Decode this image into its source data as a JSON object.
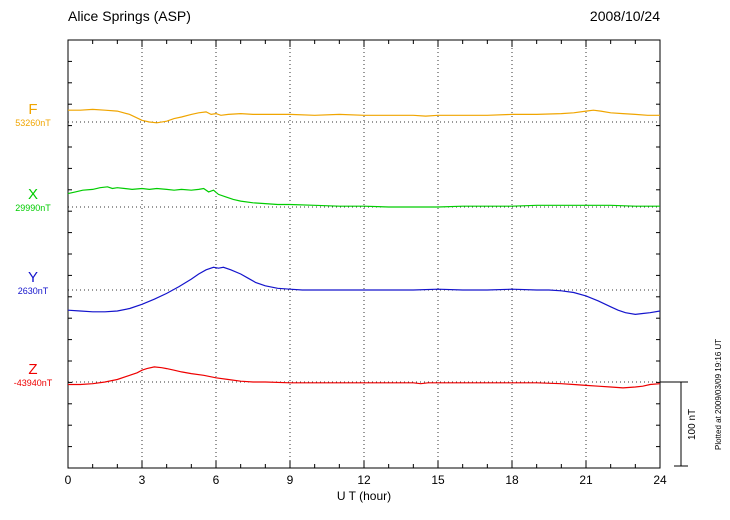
{
  "header": {
    "station": "Alice Springs (ASP)",
    "date": "2008/10/24"
  },
  "scale_bar": {
    "label": "100 nT"
  },
  "footer": {
    "plotted_at": "Plotted at 2009/03/09 19:16 UT"
  },
  "chart_data": {
    "type": "line",
    "title": "Alice Springs (ASP)",
    "date": "2008/10/24",
    "xlabel": "U T (hour)",
    "x_range": [
      0,
      24
    ],
    "x_ticks": [
      0,
      3,
      6,
      9,
      12,
      15,
      18,
      21,
      24
    ],
    "x_minor_step": 1,
    "grid_hours": [
      3,
      6,
      9,
      12,
      15,
      18,
      21
    ],
    "scale_bar_nT": 100,
    "unit": "nT",
    "points_format": "[UT hour, nT offset from baseline]",
    "series": [
      {
        "name": "F",
        "base_label": "53260nT",
        "color": "#f0a500",
        "points": [
          [
            0,
            14
          ],
          [
            0.5,
            14
          ],
          [
            1,
            15
          ],
          [
            1.5,
            14
          ],
          [
            2,
            13
          ],
          [
            2.5,
            9
          ],
          [
            3,
            2
          ],
          [
            3.3,
            0
          ],
          [
            3.6,
            -1
          ],
          [
            4,
            1
          ],
          [
            4.3,
            4
          ],
          [
            4.6,
            6
          ],
          [
            5,
            9
          ],
          [
            5.3,
            11
          ],
          [
            5.6,
            12
          ],
          [
            5.8,
            9
          ],
          [
            6,
            10
          ],
          [
            6.2,
            8
          ],
          [
            6.5,
            9
          ],
          [
            7,
            10
          ],
          [
            7.5,
            9
          ],
          [
            8,
            9
          ],
          [
            9,
            9
          ],
          [
            10,
            8
          ],
          [
            11,
            9
          ],
          [
            12,
            8
          ],
          [
            13,
            8
          ],
          [
            14,
            8
          ],
          [
            14.5,
            7
          ],
          [
            15,
            8
          ],
          [
            16,
            8
          ],
          [
            17,
            8
          ],
          [
            18,
            9
          ],
          [
            19,
            9
          ],
          [
            20,
            10
          ],
          [
            20.5,
            11
          ],
          [
            21,
            13
          ],
          [
            21.3,
            14
          ],
          [
            21.6,
            13
          ],
          [
            22,
            11
          ],
          [
            22.5,
            10
          ],
          [
            23,
            9
          ],
          [
            23.5,
            8
          ],
          [
            24,
            8
          ]
        ]
      },
      {
        "name": "X",
        "base_label": "29990nT",
        "color": "#00cc00",
        "points": [
          [
            0,
            16
          ],
          [
            0.3,
            18
          ],
          [
            0.6,
            20
          ],
          [
            1,
            21
          ],
          [
            1.3,
            23
          ],
          [
            1.6,
            24
          ],
          [
            1.8,
            22
          ],
          [
            2,
            23
          ],
          [
            2.3,
            22
          ],
          [
            2.6,
            21
          ],
          [
            3,
            22
          ],
          [
            3.3,
            21
          ],
          [
            3.6,
            22
          ],
          [
            4,
            21
          ],
          [
            4.3,
            20
          ],
          [
            4.6,
            21
          ],
          [
            5,
            20
          ],
          [
            5.3,
            21
          ],
          [
            5.5,
            22
          ],
          [
            5.7,
            18
          ],
          [
            5.9,
            20
          ],
          [
            6.1,
            15
          ],
          [
            6.4,
            12
          ],
          [
            6.7,
            9
          ],
          [
            7,
            7
          ],
          [
            7.5,
            5
          ],
          [
            8,
            4
          ],
          [
            8.5,
            3
          ],
          [
            9,
            3
          ],
          [
            10,
            2
          ],
          [
            11,
            1
          ],
          [
            12,
            1
          ],
          [
            13,
            0
          ],
          [
            14,
            0
          ],
          [
            15,
            0
          ],
          [
            16,
            1
          ],
          [
            17,
            1
          ],
          [
            18,
            1
          ],
          [
            19,
            2
          ],
          [
            20,
            2
          ],
          [
            21,
            2
          ],
          [
            22,
            2
          ],
          [
            23,
            1
          ],
          [
            24,
            1
          ]
        ]
      },
      {
        "name": "Y",
        "base_label": "2630nT",
        "color": "#1414cc",
        "points": [
          [
            0,
            -24
          ],
          [
            0.5,
            -25
          ],
          [
            1,
            -26
          ],
          [
            1.5,
            -26
          ],
          [
            2,
            -25
          ],
          [
            2.5,
            -22
          ],
          [
            3,
            -17
          ],
          [
            3.5,
            -11
          ],
          [
            4,
            -4
          ],
          [
            4.5,
            4
          ],
          [
            5,
            13
          ],
          [
            5.3,
            19
          ],
          [
            5.6,
            24
          ],
          [
            5.9,
            27
          ],
          [
            6.1,
            26
          ],
          [
            6.3,
            27
          ],
          [
            6.6,
            24
          ],
          [
            7,
            19
          ],
          [
            7.3,
            14
          ],
          [
            7.6,
            9
          ],
          [
            8,
            5
          ],
          [
            8.5,
            2
          ],
          [
            9,
            1
          ],
          [
            9.5,
            0
          ],
          [
            10,
            0
          ],
          [
            11,
            0
          ],
          [
            12,
            0
          ],
          [
            13,
            0
          ],
          [
            14,
            0
          ],
          [
            15,
            1
          ],
          [
            16,
            0
          ],
          [
            17,
            0
          ],
          [
            18,
            1
          ],
          [
            19,
            0
          ],
          [
            19.5,
            0
          ],
          [
            20,
            -1
          ],
          [
            20.5,
            -3
          ],
          [
            21,
            -7
          ],
          [
            21.5,
            -13
          ],
          [
            22,
            -20
          ],
          [
            22.3,
            -24
          ],
          [
            22.6,
            -27
          ],
          [
            23,
            -29
          ],
          [
            23.3,
            -28
          ],
          [
            23.6,
            -27
          ],
          [
            24,
            -25
          ]
        ]
      },
      {
        "name": "Z",
        "base_label": "-43940nT",
        "color": "#ee0000",
        "points": [
          [
            0,
            -3
          ],
          [
            0.5,
            -3
          ],
          [
            1,
            -2
          ],
          [
            1.5,
            0
          ],
          [
            2,
            3
          ],
          [
            2.5,
            8
          ],
          [
            2.8,
            11
          ],
          [
            3,
            14
          ],
          [
            3.2,
            16
          ],
          [
            3.5,
            18
          ],
          [
            3.8,
            17
          ],
          [
            4,
            16
          ],
          [
            4.3,
            14
          ],
          [
            4.6,
            12
          ],
          [
            5,
            10
          ],
          [
            5.5,
            8
          ],
          [
            6,
            5
          ],
          [
            6.5,
            3
          ],
          [
            7,
            1
          ],
          [
            7.5,
            0
          ],
          [
            8,
            0
          ],
          [
            9,
            -1
          ],
          [
            10,
            -1
          ],
          [
            11,
            -1
          ],
          [
            12,
            -1
          ],
          [
            13,
            -1
          ],
          [
            14,
            -1
          ],
          [
            14.3,
            -2
          ],
          [
            14.6,
            -1
          ],
          [
            15,
            -1
          ],
          [
            16,
            -1
          ],
          [
            17,
            -1
          ],
          [
            18,
            -1
          ],
          [
            19,
            -1
          ],
          [
            20,
            -2
          ],
          [
            20.5,
            -3
          ],
          [
            21,
            -4
          ],
          [
            21.5,
            -5
          ],
          [
            22,
            -6
          ],
          [
            22.5,
            -7
          ],
          [
            23,
            -6
          ],
          [
            23.3,
            -5
          ],
          [
            23.6,
            -3
          ],
          [
            24,
            -2
          ]
        ]
      }
    ]
  }
}
